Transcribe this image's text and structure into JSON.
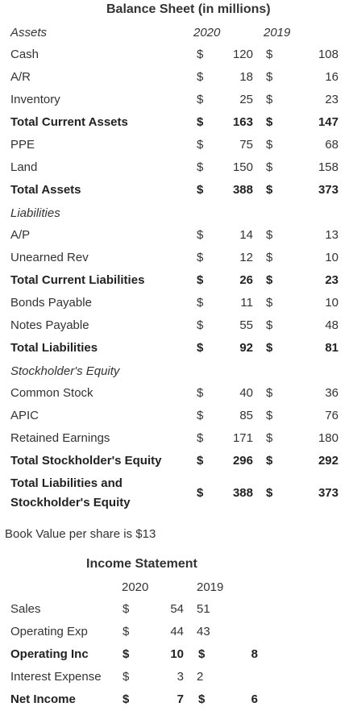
{
  "balance_sheet": {
    "title": "Balance Sheet (in millions)",
    "year1": "2020",
    "year2": "2019",
    "assets_header": "Assets",
    "liabilities_header": "Liabilities",
    "equity_header": "Stockholder's Equity",
    "currency": "$",
    "rows": [
      {
        "label": "Cash",
        "v2020": "120",
        "v2019": "108"
      },
      {
        "label": "A/R",
        "v2020": "18",
        "v2019": "16"
      },
      {
        "label": "Inventory",
        "v2020": "25",
        "v2019": "23"
      },
      {
        "label": "Total Current Assets",
        "v2020": "163",
        "v2019": "147"
      },
      {
        "label": "PPE",
        "v2020": "75",
        "v2019": "68"
      },
      {
        "label": "Land",
        "v2020": "150",
        "v2019": "158"
      },
      {
        "label": "Total Assets",
        "v2020": "388",
        "v2019": "373"
      },
      {
        "label": "A/P",
        "v2020": "14",
        "v2019": "13"
      },
      {
        "label": "Unearned Rev",
        "v2020": "12",
        "v2019": "10"
      },
      {
        "label": "Total Current Liabilities",
        "v2020": "26",
        "v2019": "23"
      },
      {
        "label": "Bonds Payable",
        "v2020": "11",
        "v2019": "10"
      },
      {
        "label": "Notes Payable",
        "v2020": "55",
        "v2019": "48"
      },
      {
        "label": "Total Liabilities",
        "v2020": "92",
        "v2019": "81"
      },
      {
        "label": "Common Stock",
        "v2020": "40",
        "v2019": "36"
      },
      {
        "label": "APIC",
        "v2020": "85",
        "v2019": "76"
      },
      {
        "label": "Retained Earnings",
        "v2020": "171",
        "v2019": "180"
      },
      {
        "label": "Total Stockholder's Equity",
        "v2020": "296",
        "v2019": "292"
      },
      {
        "label_line1": "Total Liabilities and",
        "label_line2": "Stockholder's Equity",
        "v2020": "388",
        "v2019": "373"
      }
    ]
  },
  "book_value_note": "Book Value per share is $13",
  "income_statement": {
    "title": "Income Statement",
    "year1": "2020",
    "year2": "2019",
    "currency": "$",
    "rows": [
      {
        "label": "Sales",
        "v2020": "54",
        "v2019": "51"
      },
      {
        "label": "Operating Exp",
        "v2020": "44",
        "v2019": "43"
      },
      {
        "label": "Operating Inc",
        "v2020": "10",
        "v2019": "8"
      },
      {
        "label": "Interest Expense",
        "v2020": "3",
        "v2019": "2"
      },
      {
        "label": "Net Income",
        "v2020": "7",
        "v2019": "6"
      }
    ]
  }
}
